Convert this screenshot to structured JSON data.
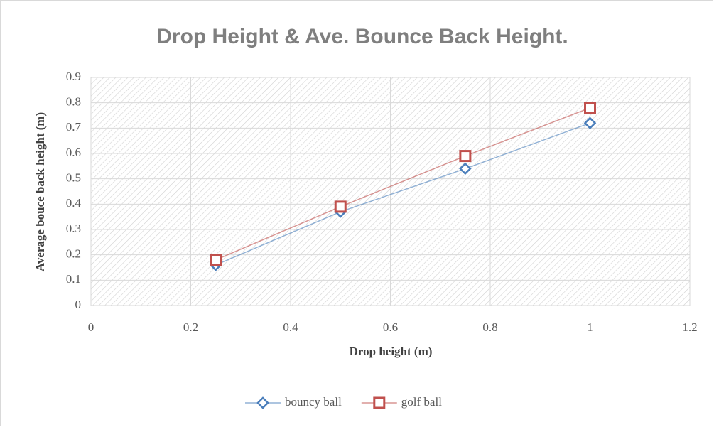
{
  "chart_data": {
    "type": "scatter",
    "title": "Drop Height & Ave. Bounce Back Height.",
    "x_label": "Drop height (m)",
    "y_label": "Average bouce back height (m)",
    "x": [
      0.25,
      0.5,
      0.75,
      1
    ],
    "series": [
      {
        "name": "bouncy ball",
        "color": "#4a7ebb",
        "marker": "diamond",
        "values": [
          0.16,
          0.37,
          0.54,
          0.72
        ]
      },
      {
        "name": "golf ball",
        "color": "#c0504d",
        "marker": "square",
        "values": [
          0.18,
          0.39,
          0.59,
          0.78
        ]
      }
    ],
    "xlim": [
      0,
      1.2
    ],
    "xticks": [
      0,
      0.2,
      0.4,
      0.6,
      0.8,
      1,
      1.2
    ],
    "ylim": [
      0,
      0.9
    ],
    "yticks": [
      0,
      0.1,
      0.2,
      0.3,
      0.4,
      0.5,
      0.6,
      0.7,
      0.8,
      0.9
    ],
    "grid": true,
    "legend": "bottom"
  }
}
